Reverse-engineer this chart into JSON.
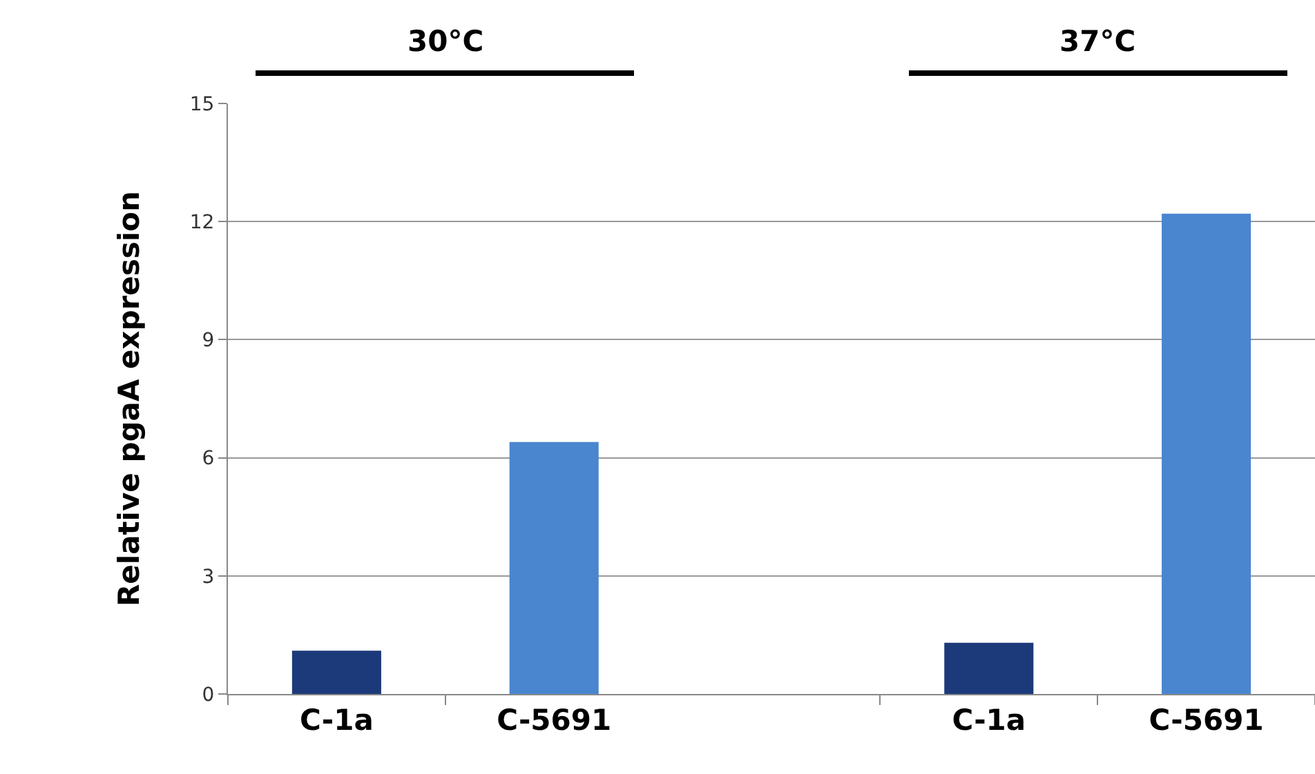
{
  "chart_data": {
    "type": "bar",
    "ylabel": "Relative pgaA expression",
    "categories": [
      "C-1a",
      "C-5691",
      null,
      "C-1a",
      "C-5691"
    ],
    "values": [
      1.1,
      6.4,
      null,
      1.3,
      12.2
    ],
    "colors": [
      "#1c3a7a",
      "#4a86d0",
      "#4a86d0",
      "#1c3a7a",
      "#4a86d0"
    ],
    "ylim": [
      0,
      15
    ],
    "yticks": [
      0,
      3,
      6,
      9,
      12,
      15
    ],
    "grid": "y",
    "annotations": [
      "30°C",
      "37°C"
    ]
  }
}
